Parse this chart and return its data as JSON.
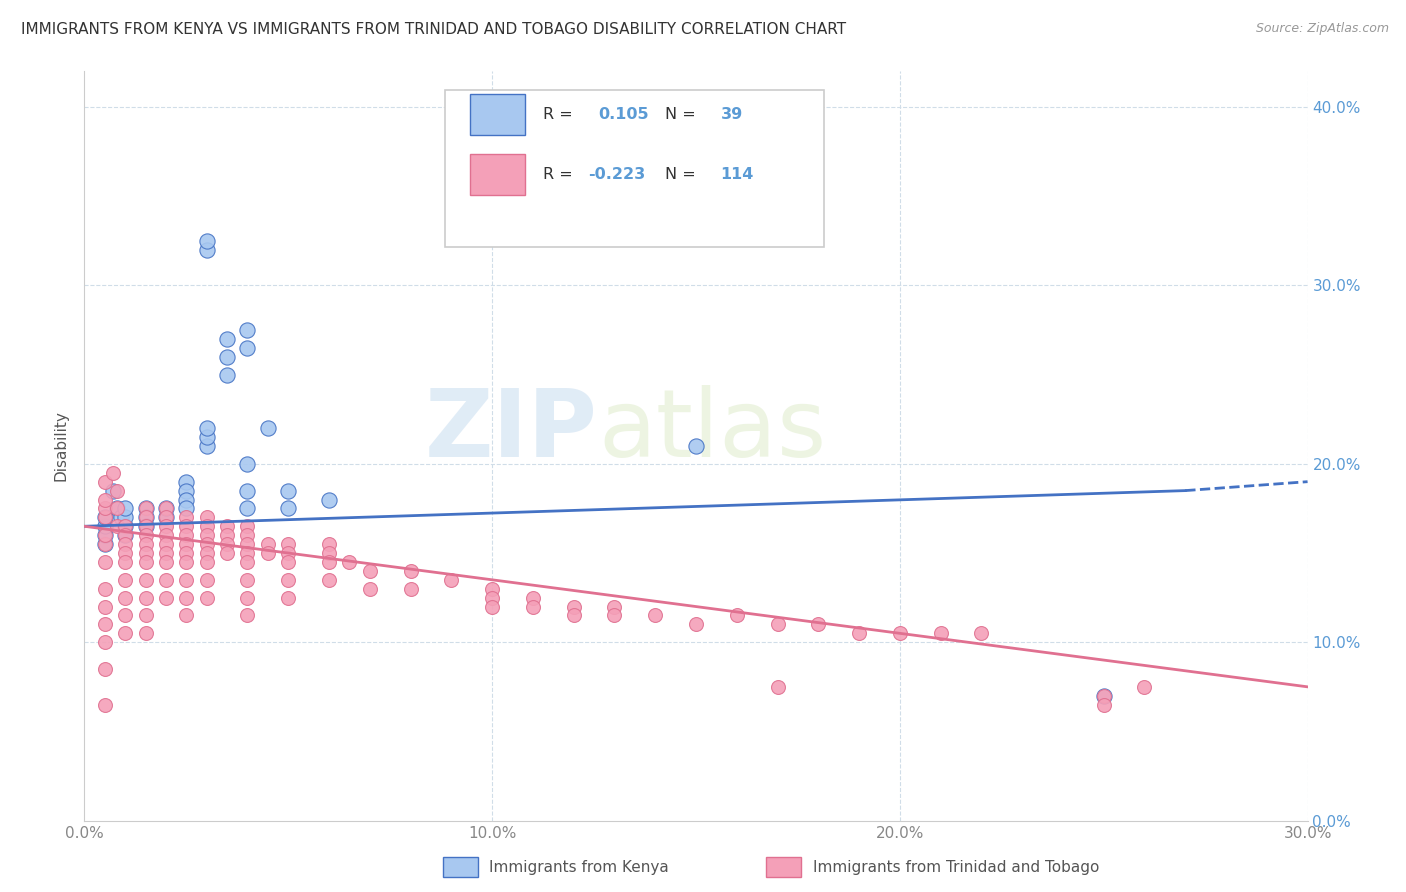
{
  "title": "IMMIGRANTS FROM KENYA VS IMMIGRANTS FROM TRINIDAD AND TOBAGO DISABILITY CORRELATION CHART",
  "source": "Source: ZipAtlas.com",
  "ylabel_label": "Disability",
  "xlim": [
    0.0,
    0.3
  ],
  "ylim": [
    0.0,
    0.42
  ],
  "xtick_vals": [
    0.0,
    0.1,
    0.2,
    0.3
  ],
  "ytick_vals": [
    0.0,
    0.1,
    0.2,
    0.3,
    0.4
  ],
  "color_kenya": "#a8c8f0",
  "color_trinidad": "#f4a0b8",
  "line_kenya_color": "#4472c4",
  "line_trinidad_color": "#e07090",
  "legend_r1_label": "R = ",
  "legend_r1_val": "0.105",
  "legend_r1_n_label": "N = ",
  "legend_r1_n_val": "39",
  "legend_r2_label": "R = ",
  "legend_r2_val": "-0.223",
  "legend_r2_n_label": "N = ",
  "legend_r2_n_val": "114",
  "watermark_zip": "ZIP",
  "watermark_atlas": "atlas",
  "kenya_scatter": [
    [
      0.005,
      0.155
    ],
    [
      0.005,
      0.16
    ],
    [
      0.005,
      0.165
    ],
    [
      0.005,
      0.17
    ],
    [
      0.007,
      0.185
    ],
    [
      0.008,
      0.175
    ],
    [
      0.009,
      0.17
    ],
    [
      0.01,
      0.165
    ],
    [
      0.01,
      0.16
    ],
    [
      0.01,
      0.17
    ],
    [
      0.01,
      0.175
    ],
    [
      0.015,
      0.175
    ],
    [
      0.015,
      0.17
    ],
    [
      0.015,
      0.165
    ],
    [
      0.02,
      0.17
    ],
    [
      0.02,
      0.175
    ],
    [
      0.025,
      0.19
    ],
    [
      0.025,
      0.185
    ],
    [
      0.025,
      0.18
    ],
    [
      0.025,
      0.175
    ],
    [
      0.03,
      0.21
    ],
    [
      0.03,
      0.215
    ],
    [
      0.03,
      0.22
    ],
    [
      0.03,
      0.32
    ],
    [
      0.03,
      0.325
    ],
    [
      0.035,
      0.27
    ],
    [
      0.035,
      0.26
    ],
    [
      0.035,
      0.25
    ],
    [
      0.04,
      0.275
    ],
    [
      0.04,
      0.265
    ],
    [
      0.04,
      0.2
    ],
    [
      0.04,
      0.185
    ],
    [
      0.04,
      0.175
    ],
    [
      0.045,
      0.22
    ],
    [
      0.05,
      0.175
    ],
    [
      0.05,
      0.185
    ],
    [
      0.06,
      0.18
    ],
    [
      0.15,
      0.21
    ],
    [
      0.25,
      0.07
    ]
  ],
  "trinidad_scatter": [
    [
      0.005,
      0.155
    ],
    [
      0.005,
      0.16
    ],
    [
      0.005,
      0.17
    ],
    [
      0.005,
      0.175
    ],
    [
      0.005,
      0.18
    ],
    [
      0.005,
      0.19
    ],
    [
      0.005,
      0.145
    ],
    [
      0.005,
      0.13
    ],
    [
      0.005,
      0.12
    ],
    [
      0.005,
      0.11
    ],
    [
      0.005,
      0.1
    ],
    [
      0.005,
      0.085
    ],
    [
      0.007,
      0.195
    ],
    [
      0.008,
      0.185
    ],
    [
      0.008,
      0.175
    ],
    [
      0.008,
      0.165
    ],
    [
      0.01,
      0.165
    ],
    [
      0.01,
      0.16
    ],
    [
      0.01,
      0.155
    ],
    [
      0.01,
      0.15
    ],
    [
      0.01,
      0.145
    ],
    [
      0.01,
      0.135
    ],
    [
      0.01,
      0.125
    ],
    [
      0.01,
      0.115
    ],
    [
      0.01,
      0.105
    ],
    [
      0.015,
      0.175
    ],
    [
      0.015,
      0.17
    ],
    [
      0.015,
      0.165
    ],
    [
      0.015,
      0.16
    ],
    [
      0.015,
      0.155
    ],
    [
      0.015,
      0.15
    ],
    [
      0.015,
      0.145
    ],
    [
      0.015,
      0.135
    ],
    [
      0.015,
      0.125
    ],
    [
      0.015,
      0.115
    ],
    [
      0.015,
      0.105
    ],
    [
      0.02,
      0.175
    ],
    [
      0.02,
      0.17
    ],
    [
      0.02,
      0.165
    ],
    [
      0.02,
      0.16
    ],
    [
      0.02,
      0.155
    ],
    [
      0.02,
      0.15
    ],
    [
      0.02,
      0.145
    ],
    [
      0.02,
      0.135
    ],
    [
      0.02,
      0.125
    ],
    [
      0.025,
      0.17
    ],
    [
      0.025,
      0.165
    ],
    [
      0.025,
      0.16
    ],
    [
      0.025,
      0.155
    ],
    [
      0.025,
      0.15
    ],
    [
      0.025,
      0.145
    ],
    [
      0.025,
      0.135
    ],
    [
      0.025,
      0.125
    ],
    [
      0.025,
      0.115
    ],
    [
      0.03,
      0.17
    ],
    [
      0.03,
      0.165
    ],
    [
      0.03,
      0.16
    ],
    [
      0.03,
      0.155
    ],
    [
      0.03,
      0.15
    ],
    [
      0.03,
      0.145
    ],
    [
      0.03,
      0.135
    ],
    [
      0.03,
      0.125
    ],
    [
      0.035,
      0.165
    ],
    [
      0.035,
      0.16
    ],
    [
      0.035,
      0.155
    ],
    [
      0.035,
      0.15
    ],
    [
      0.04,
      0.165
    ],
    [
      0.04,
      0.16
    ],
    [
      0.04,
      0.155
    ],
    [
      0.04,
      0.15
    ],
    [
      0.04,
      0.145
    ],
    [
      0.04,
      0.135
    ],
    [
      0.04,
      0.125
    ],
    [
      0.04,
      0.115
    ],
    [
      0.045,
      0.155
    ],
    [
      0.045,
      0.15
    ],
    [
      0.05,
      0.155
    ],
    [
      0.05,
      0.15
    ],
    [
      0.05,
      0.145
    ],
    [
      0.05,
      0.135
    ],
    [
      0.05,
      0.125
    ],
    [
      0.06,
      0.155
    ],
    [
      0.06,
      0.15
    ],
    [
      0.06,
      0.145
    ],
    [
      0.06,
      0.135
    ],
    [
      0.065,
      0.145
    ],
    [
      0.07,
      0.14
    ],
    [
      0.07,
      0.13
    ],
    [
      0.08,
      0.14
    ],
    [
      0.08,
      0.13
    ],
    [
      0.09,
      0.135
    ],
    [
      0.1,
      0.13
    ],
    [
      0.1,
      0.125
    ],
    [
      0.1,
      0.12
    ],
    [
      0.11,
      0.125
    ],
    [
      0.11,
      0.12
    ],
    [
      0.12,
      0.12
    ],
    [
      0.12,
      0.115
    ],
    [
      0.13,
      0.12
    ],
    [
      0.13,
      0.115
    ],
    [
      0.14,
      0.115
    ],
    [
      0.15,
      0.11
    ],
    [
      0.16,
      0.115
    ],
    [
      0.17,
      0.11
    ],
    [
      0.18,
      0.11
    ],
    [
      0.19,
      0.105
    ],
    [
      0.2,
      0.105
    ],
    [
      0.21,
      0.105
    ],
    [
      0.22,
      0.105
    ],
    [
      0.25,
      0.07
    ],
    [
      0.26,
      0.075
    ],
    [
      0.25,
      0.065
    ],
    [
      0.17,
      0.075
    ],
    [
      0.005,
      0.065
    ]
  ]
}
